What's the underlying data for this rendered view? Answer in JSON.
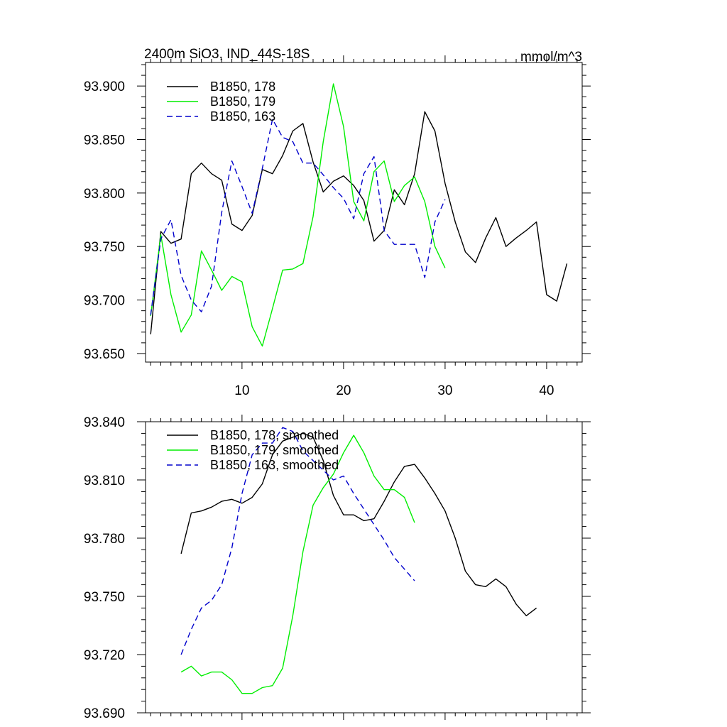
{
  "chart_data": [
    {
      "type": "line",
      "title_left": "2400m SiO3, IND_44S-18S",
      "title_right": "mmol/m^3",
      "xlim": [
        0.5,
        43.5
      ],
      "ylim": [
        93.642,
        93.922
      ],
      "xticks": [
        10,
        20,
        30,
        40
      ],
      "xtick_labels": [
        "10",
        "20",
        "30",
        "40"
      ],
      "yticks": [
        93.65,
        93.7,
        93.75,
        93.8,
        93.85,
        93.9
      ],
      "ytick_labels": [
        "93.650",
        "93.700",
        "93.750",
        "93.800",
        "93.850",
        "93.900"
      ],
      "legend": [
        {
          "label": "B1850, 178",
          "color": "#000000",
          "dash": "none"
        },
        {
          "label": "B1850, 179",
          "color": "#00ee00",
          "dash": "none"
        },
        {
          "label": "B1850, 163",
          "color": "#0000cc",
          "dash": "8,5"
        }
      ],
      "series": [
        {
          "name": "B1850, 178",
          "color": "#000000",
          "dash": "none",
          "x": [
            1,
            2,
            3,
            4,
            5,
            6,
            7,
            8,
            9,
            10,
            11,
            12,
            13,
            14,
            15,
            16,
            17,
            18,
            19,
            20,
            21,
            22,
            23,
            24,
            25,
            26,
            27,
            28,
            29,
            30,
            31,
            32,
            33,
            34,
            35,
            36,
            37,
            38,
            39,
            40,
            41,
            42
          ],
          "y": [
            93.668,
            93.764,
            93.753,
            93.757,
            93.818,
            93.828,
            93.818,
            93.812,
            93.771,
            93.765,
            93.779,
            93.822,
            93.818,
            93.835,
            93.858,
            93.865,
            93.829,
            93.801,
            93.811,
            93.816,
            93.807,
            93.793,
            93.755,
            93.765,
            93.803,
            93.789,
            93.818,
            93.876,
            93.858,
            93.809,
            93.773,
            93.745,
            93.735,
            93.758,
            93.777,
            93.75,
            93.758,
            93.765,
            93.773,
            93.705,
            93.699,
            93.734
          ]
        },
        {
          "name": "B1850, 179",
          "color": "#00ee00",
          "dash": "none",
          "x": [
            1,
            2,
            3,
            4,
            5,
            6,
            7,
            8,
            9,
            10,
            11,
            12,
            13,
            14,
            15,
            16,
            17,
            18,
            19,
            20,
            21,
            22,
            23,
            24,
            25,
            26,
            27,
            28,
            29,
            30
          ],
          "y": [
            93.685,
            93.761,
            93.705,
            93.67,
            93.686,
            93.746,
            93.728,
            93.709,
            93.722,
            93.717,
            93.675,
            93.657,
            93.692,
            93.728,
            93.729,
            93.734,
            93.778,
            93.848,
            93.902,
            93.862,
            93.792,
            93.774,
            93.82,
            93.83,
            93.792,
            93.807,
            93.815,
            93.792,
            93.75,
            93.73
          ]
        },
        {
          "name": "B1850, 163",
          "color": "#0000cc",
          "dash": "8,5",
          "x": [
            1,
            2,
            3,
            4,
            5,
            6,
            7,
            8,
            9,
            10,
            11,
            12,
            13,
            14,
            15,
            16,
            17,
            18,
            19,
            20,
            21,
            22,
            23,
            24,
            25,
            26,
            27,
            28,
            29,
            30
          ],
          "y": [
            93.686,
            93.757,
            93.775,
            93.723,
            93.7,
            93.689,
            93.713,
            93.782,
            93.83,
            93.806,
            93.781,
            93.823,
            93.869,
            93.852,
            93.848,
            93.828,
            93.828,
            93.817,
            93.805,
            93.795,
            93.776,
            93.818,
            93.834,
            93.765,
            93.752,
            93.752,
            93.752,
            93.721,
            93.773,
            93.794
          ]
        }
      ]
    },
    {
      "type": "line",
      "xlim": [
        0.5,
        43.5
      ],
      "ylim": [
        93.69,
        93.84
      ],
      "xticks": [
        10,
        20,
        30,
        40
      ],
      "yticks": [
        93.69,
        93.72,
        93.75,
        93.78,
        93.81,
        93.84
      ],
      "ytick_labels": [
        "93.690",
        "93.720",
        "93.750",
        "93.780",
        "93.810",
        "93.840"
      ],
      "legend": [
        {
          "label": "B1850, 178, smoothed",
          "color": "#000000",
          "dash": "none"
        },
        {
          "label": "B1850, 179, smoothed",
          "color": "#00ee00",
          "dash": "none"
        },
        {
          "label": "B1850, 163, smoothed",
          "color": "#0000cc",
          "dash": "8,5"
        }
      ],
      "series": [
        {
          "name": "B1850, 178, smoothed",
          "color": "#000000",
          "dash": "none",
          "x": [
            4,
            5,
            6,
            7,
            8,
            9,
            10,
            11,
            12,
            13,
            14,
            15,
            16,
            17,
            18,
            19,
            20,
            21,
            22,
            23,
            24,
            25,
            26,
            27,
            28,
            29,
            30,
            31,
            32,
            33,
            34,
            35,
            36,
            37,
            38,
            39
          ],
          "y": [
            93.772,
            93.793,
            93.794,
            93.796,
            93.799,
            93.8,
            93.798,
            93.801,
            93.808,
            93.823,
            93.83,
            93.832,
            93.834,
            93.832,
            93.82,
            93.802,
            93.792,
            93.792,
            93.789,
            93.79,
            93.799,
            93.809,
            93.817,
            93.818,
            93.811,
            93.803,
            93.794,
            93.78,
            93.763,
            93.756,
            93.755,
            93.759,
            93.755,
            93.746,
            93.74,
            93.744
          ]
        },
        {
          "name": "B1850, 179, smoothed",
          "color": "#00ee00",
          "dash": "none",
          "x": [
            4,
            5,
            6,
            7,
            8,
            9,
            10,
            11,
            12,
            13,
            14,
            15,
            16,
            17,
            18,
            19,
            20,
            21,
            22,
            23,
            24,
            25,
            26,
            27
          ],
          "y": [
            93.711,
            93.714,
            93.709,
            93.711,
            93.711,
            93.707,
            93.7,
            93.7,
            93.703,
            93.704,
            93.713,
            93.74,
            93.773,
            93.797,
            93.806,
            93.813,
            93.824,
            93.833,
            93.824,
            93.812,
            93.805,
            93.805,
            93.801,
            93.788
          ]
        },
        {
          "name": "B1850, 163, smoothed",
          "color": "#0000cc",
          "dash": "8,5",
          "x": [
            4,
            5,
            6,
            7,
            8,
            9,
            10,
            11,
            12,
            13,
            14,
            15,
            16,
            17,
            18,
            19,
            20,
            21,
            22,
            23,
            24,
            25,
            26,
            27
          ],
          "y": [
            93.72,
            93.733,
            93.744,
            93.748,
            93.756,
            93.775,
            93.803,
            93.823,
            93.829,
            93.829,
            93.837,
            93.835,
            93.825,
            93.82,
            93.815,
            93.81,
            93.812,
            93.803,
            93.795,
            93.787,
            93.779,
            93.77,
            93.764,
            93.758
          ]
        }
      ]
    }
  ]
}
